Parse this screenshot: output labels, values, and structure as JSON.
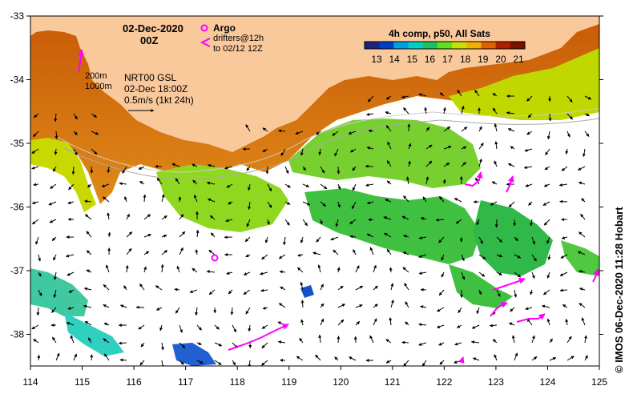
{
  "header": {
    "date": "02-Dec-2020",
    "time": "00Z"
  },
  "legend": {
    "argo_label": "Argo",
    "drifters_line1": "drifters@12h",
    "drifters_line2": "to 02/12 12Z",
    "argo_color": "#ff00ff",
    "drifter_color": "#ff00ff"
  },
  "isobaths": {
    "line1": "200m",
    "line2": "1000m"
  },
  "current_info": {
    "line1": "NRT00 GSL",
    "line2": "02-Dec 18:00Z",
    "line3": "0.5m/s (1kt 24h)"
  },
  "colorbar": {
    "title": "4h comp, p50, All Sats",
    "ticks": [
      "13",
      "14",
      "15",
      "16",
      "17",
      "18",
      "19",
      "20",
      "21"
    ],
    "colors": [
      "#1a237e",
      "#0040c0",
      "#00a0e0",
      "#00d0c0",
      "#20c060",
      "#60e020",
      "#c8e000",
      "#f0b000",
      "#e06000",
      "#b02000",
      "#7a1000"
    ]
  },
  "axes": {
    "lon_ticks": [
      "114",
      "115",
      "116",
      "117",
      "118",
      "119",
      "120",
      "121",
      "122",
      "123",
      "124",
      "125"
    ],
    "lat_ticks": [
      "-33",
      "-34",
      "-35",
      "-36",
      "-37",
      "-38"
    ]
  },
  "credit": "© IMOS 06-Dec-2020 11:28 Hobart",
  "colors": {
    "land": "#f9c89b",
    "warm": "#d96a10",
    "cool": "#40c040"
  }
}
